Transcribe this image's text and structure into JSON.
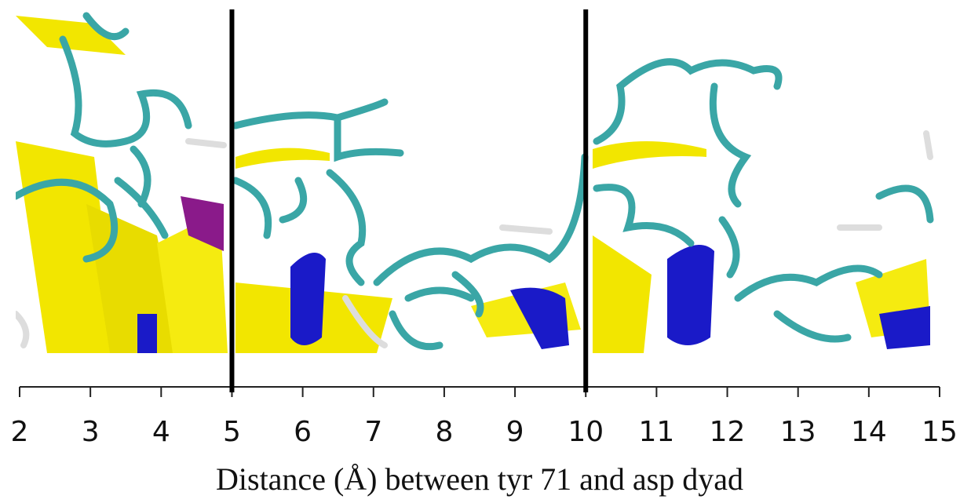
{
  "axis": {
    "xlim": [
      2,
      15
    ],
    "xticks": [
      2,
      3,
      4,
      5,
      6,
      7,
      8,
      9,
      10,
      11,
      12,
      13,
      14,
      15
    ],
    "dividers": [
      5,
      10
    ],
    "label": "Distance (Å) between tyr 71 and asp dyad"
  }
}
